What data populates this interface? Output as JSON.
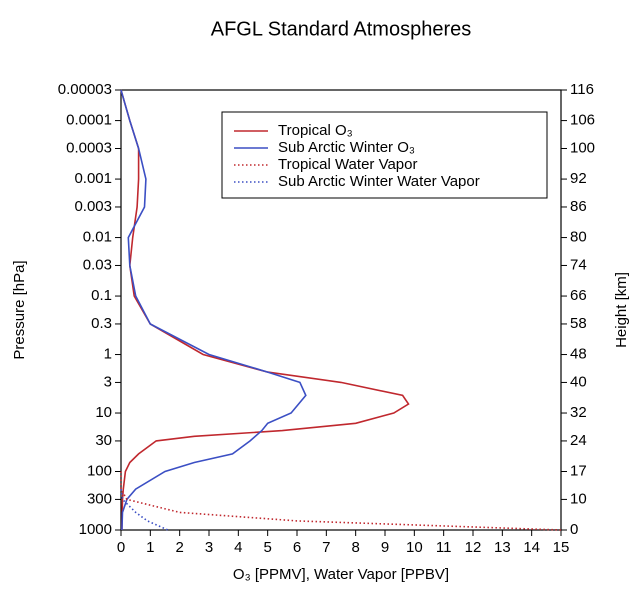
{
  "chart_data": {
    "type": "profile",
    "title": "AFGL Standard Atmospheres",
    "xlabel": "O₃ [PPMV], Water Vapor [PPBV]",
    "ylabel": "Pressure [hPa]",
    "y2label": "Height [km]",
    "xlim": [
      0,
      15
    ],
    "xticks": [
      0,
      1,
      2,
      3,
      4,
      5,
      6,
      7,
      8,
      9,
      10,
      11,
      12,
      13,
      14,
      15
    ],
    "ylim": [
      3e-05,
      1000
    ],
    "ylog": true,
    "yreversed": true,
    "yticks": [
      3e-05,
      0.0001,
      0.0003,
      0.001,
      0.003,
      0.01,
      0.03,
      0.1,
      0.3,
      1,
      3,
      10,
      30,
      100,
      300,
      1000
    ],
    "y2lim": [
      116,
      0
    ],
    "y2ticks": [
      116,
      106,
      100,
      92,
      86,
      80,
      74,
      66,
      58,
      48,
      40,
      32,
      24,
      17,
      10,
      0
    ],
    "legend": "top-right",
    "grid": false,
    "series": [
      {
        "name": "Tropical O₃",
        "color": "#c0282e",
        "dash": "solid",
        "x": [
          0,
          0.3,
          0.6,
          0.6,
          0.55,
          0.4,
          0.3,
          0.45,
          1.0,
          2.8,
          5,
          7.5,
          9.6,
          9.8,
          9.3,
          8,
          5.5,
          2.5,
          1.2,
          0.6,
          0.3,
          0.15,
          0.08,
          0.05,
          0.04,
          0.03
        ],
        "y": [
          3e-05,
          0.0001,
          0.0003,
          0.001,
          0.003,
          0.01,
          0.03,
          0.1,
          0.3,
          1,
          2,
          3,
          5,
          7,
          10,
          15,
          20,
          25,
          30,
          50,
          70,
          100,
          200,
          300,
          500,
          1000
        ]
      },
      {
        "name": "Sub Arctic Winter O₃",
        "color": "#3b4fc4",
        "dash": "solid",
        "x": [
          0,
          0.3,
          0.6,
          0.85,
          0.8,
          0.25,
          0.3,
          0.5,
          1.0,
          3,
          5,
          6.1,
          6.3,
          5.8,
          5,
          4.8,
          4.4,
          3.8,
          2.5,
          1.5,
          0.5,
          0.2,
          0.05,
          0.03
        ],
        "y": [
          3e-05,
          0.0001,
          0.0003,
          0.001,
          0.003,
          0.01,
          0.03,
          0.1,
          0.3,
          1,
          2,
          3,
          5,
          10,
          15,
          20,
          30,
          50,
          70,
          100,
          200,
          300,
          500,
          1000
        ]
      },
      {
        "name": "Tropical Water Vapor",
        "color": "#c0282e",
        "dash": "dotted",
        "x": [
          0,
          0,
          0.2,
          2,
          6,
          15
        ],
        "y": [
          100,
          200,
          300,
          500,
          700,
          1000
        ]
      },
      {
        "name": "Sub Arctic Winter Water Vapor",
        "color": "#3b4fc4",
        "dash": "dotted",
        "x": [
          0,
          0.05,
          0.5,
          0.9,
          1.6
        ],
        "y": [
          200,
          300,
          500,
          700,
          1000
        ]
      }
    ]
  }
}
